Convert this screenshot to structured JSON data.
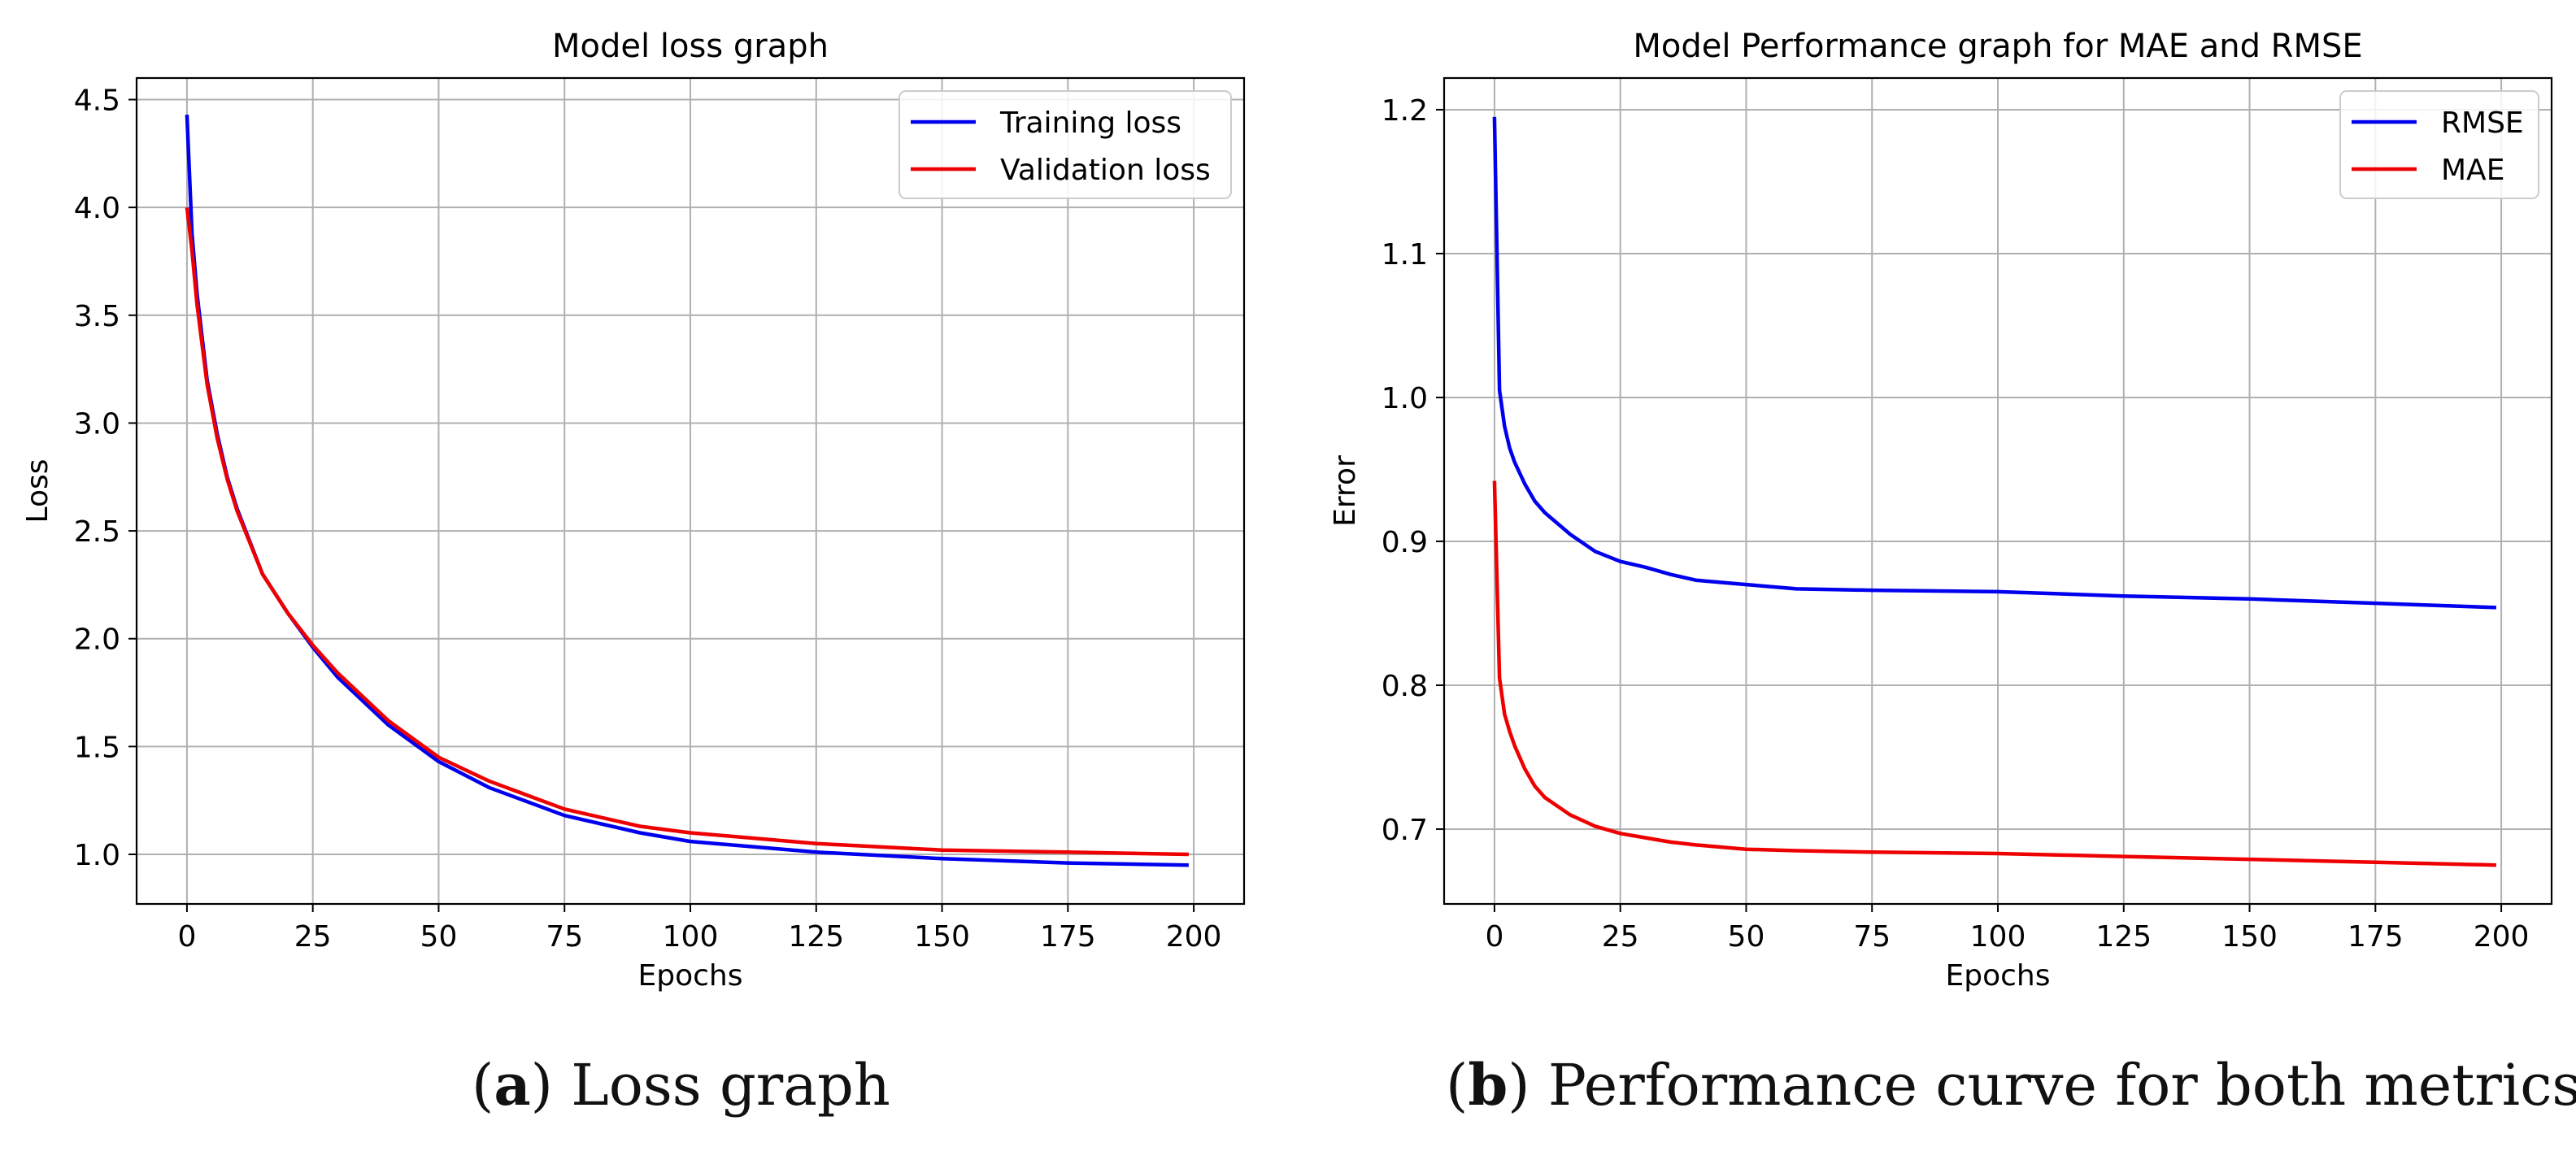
{
  "chart_data": [
    {
      "type": "line",
      "title": "Model loss graph",
      "xlabel": "Epochs",
      "ylabel": "Loss",
      "xlim": [
        -10,
        210
      ],
      "ylim": [
        0.77,
        4.6
      ],
      "xticks": [
        0,
        25,
        50,
        75,
        100,
        125,
        150,
        175,
        200
      ],
      "yticks": [
        1.0,
        1.5,
        2.0,
        2.5,
        3.0,
        3.5,
        4.0,
        4.5
      ],
      "ytick_labels": [
        "1.0",
        "1.5",
        "2.0",
        "2.5",
        "3.0",
        "3.5",
        "4.0",
        "4.5"
      ],
      "grid": true,
      "legend": "top-right",
      "series": [
        {
          "name": "Training loss",
          "color": "#0000ee",
          "x": [
            0,
            1,
            2,
            4,
            6,
            8,
            10,
            15,
            20,
            25,
            30,
            40,
            50,
            60,
            75,
            90,
            100,
            125,
            150,
            175,
            199
          ],
          "y": [
            4.43,
            3.88,
            3.6,
            3.2,
            2.95,
            2.75,
            2.6,
            2.3,
            2.12,
            1.96,
            1.82,
            1.6,
            1.43,
            1.31,
            1.18,
            1.1,
            1.06,
            1.01,
            0.98,
            0.96,
            0.95
          ]
        },
        {
          "name": "Validation loss",
          "color": "#ee0000",
          "x": [
            0,
            1,
            2,
            4,
            6,
            8,
            10,
            15,
            20,
            25,
            30,
            40,
            50,
            60,
            75,
            90,
            100,
            125,
            150,
            175,
            199
          ],
          "y": [
            4.0,
            3.8,
            3.55,
            3.18,
            2.93,
            2.74,
            2.59,
            2.3,
            2.12,
            1.97,
            1.84,
            1.62,
            1.45,
            1.34,
            1.21,
            1.13,
            1.1,
            1.05,
            1.02,
            1.01,
            1.0
          ]
        }
      ]
    },
    {
      "type": "line",
      "title": "Model Performance graph for MAE and RMSE",
      "xlabel": "Epochs",
      "ylabel": "Error",
      "xlim": [
        -10,
        210
      ],
      "ylim": [
        0.648,
        1.222
      ],
      "xticks": [
        0,
        25,
        50,
        75,
        100,
        125,
        150,
        175,
        200
      ],
      "yticks": [
        0.7,
        0.8,
        0.9,
        1.0,
        1.1,
        1.2
      ],
      "ytick_labels": [
        "0.7",
        "0.8",
        "0.9",
        "1.0",
        "1.1",
        "1.2"
      ],
      "grid": true,
      "legend": "top-right",
      "series": [
        {
          "name": "RMSE",
          "color": "#0000ee",
          "x": [
            0,
            1,
            2,
            3,
            4,
            6,
            8,
            10,
            15,
            20,
            25,
            30,
            35,
            40,
            50,
            60,
            75,
            100,
            125,
            150,
            175,
            199
          ],
          "y": [
            1.195,
            1.005,
            0.98,
            0.965,
            0.955,
            0.94,
            0.928,
            0.92,
            0.905,
            0.893,
            0.886,
            0.882,
            0.877,
            0.873,
            0.87,
            0.867,
            0.866,
            0.865,
            0.862,
            0.86,
            0.857,
            0.854
          ]
        },
        {
          "name": "MAE",
          "color": "#ee0000",
          "x": [
            0,
            1,
            2,
            3,
            4,
            6,
            8,
            10,
            15,
            20,
            25,
            30,
            35,
            40,
            50,
            60,
            75,
            100,
            125,
            150,
            175,
            199
          ],
          "y": [
            0.942,
            0.805,
            0.78,
            0.768,
            0.758,
            0.742,
            0.73,
            0.722,
            0.71,
            0.702,
            0.697,
            0.694,
            0.691,
            0.689,
            0.686,
            0.685,
            0.684,
            0.683,
            0.681,
            0.679,
            0.677,
            0.675
          ]
        }
      ]
    }
  ],
  "captions": {
    "a_letter": "a",
    "a_text": "Loss graph",
    "b_letter": "b",
    "b_text": "Performance curve for both metrics"
  }
}
